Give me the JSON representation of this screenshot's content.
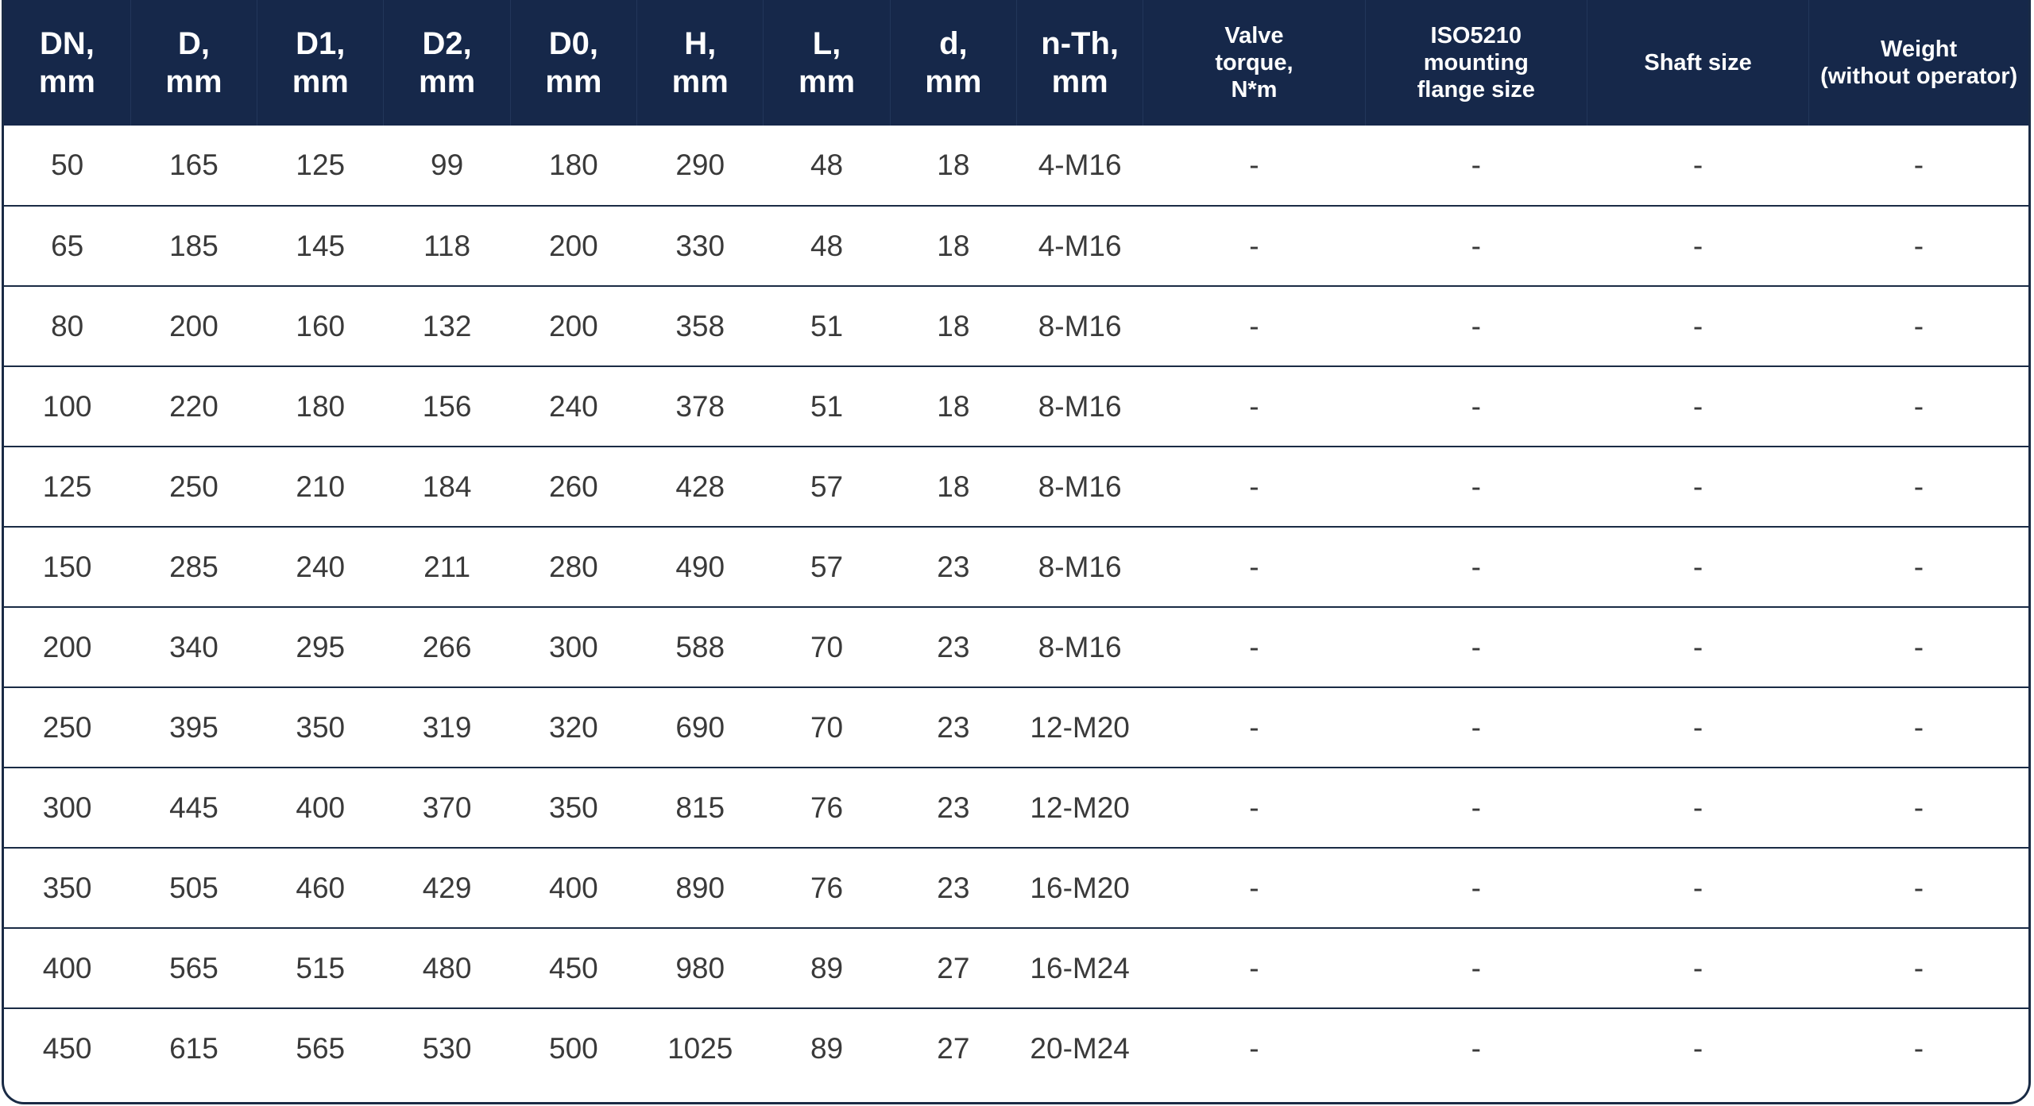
{
  "table": {
    "headers": [
      {
        "lines": [
          "DN,",
          "mm"
        ],
        "size": "big"
      },
      {
        "lines": [
          "D,",
          "mm"
        ],
        "size": "big"
      },
      {
        "lines": [
          "D1,",
          "mm"
        ],
        "size": "big"
      },
      {
        "lines": [
          "D2,",
          "mm"
        ],
        "size": "big"
      },
      {
        "lines": [
          "D0,",
          "mm"
        ],
        "size": "big"
      },
      {
        "lines": [
          "H,",
          "mm"
        ],
        "size": "big"
      },
      {
        "lines": [
          "L,",
          "mm"
        ],
        "size": "big"
      },
      {
        "lines": [
          "d,",
          "mm"
        ],
        "size": "big"
      },
      {
        "lines": [
          "n-Th,",
          "mm"
        ],
        "size": "big"
      },
      {
        "lines": [
          "Valve",
          "torque,",
          "N*m"
        ],
        "size": "small"
      },
      {
        "lines": [
          "ISO5210",
          "mounting",
          "flange size"
        ],
        "size": "small"
      },
      {
        "lines": [
          "Shaft size"
        ],
        "size": "small"
      },
      {
        "lines": [
          "Weight",
          "(without operator)"
        ],
        "size": "small"
      }
    ],
    "rows": [
      [
        "50",
        "165",
        "125",
        "99",
        "180",
        "290",
        "48",
        "18",
        "4-M16",
        "-",
        "-",
        "-",
        "-"
      ],
      [
        "65",
        "185",
        "145",
        "118",
        "200",
        "330",
        "48",
        "18",
        "4-M16",
        "-",
        "-",
        "-",
        "-"
      ],
      [
        "80",
        "200",
        "160",
        "132",
        "200",
        "358",
        "51",
        "18",
        "8-M16",
        "-",
        "-",
        "-",
        "-"
      ],
      [
        "100",
        "220",
        "180",
        "156",
        "240",
        "378",
        "51",
        "18",
        "8-M16",
        "-",
        "-",
        "-",
        "-"
      ],
      [
        "125",
        "250",
        "210",
        "184",
        "260",
        "428",
        "57",
        "18",
        "8-M16",
        "-",
        "-",
        "-",
        "-"
      ],
      [
        "150",
        "285",
        "240",
        "211",
        "280",
        "490",
        "57",
        "23",
        "8-M16",
        "-",
        "-",
        "-",
        "-"
      ],
      [
        "200",
        "340",
        "295",
        "266",
        "300",
        "588",
        "70",
        "23",
        "8-M16",
        "-",
        "-",
        "-",
        "-"
      ],
      [
        "250",
        "395",
        "350",
        "319",
        "320",
        "690",
        "70",
        "23",
        "12-M20",
        "-",
        "-",
        "-",
        "-"
      ],
      [
        "300",
        "445",
        "400",
        "370",
        "350",
        "815",
        "76",
        "23",
        "12-M20",
        "-",
        "-",
        "-",
        "-"
      ],
      [
        "350",
        "505",
        "460",
        "429",
        "400",
        "890",
        "76",
        "23",
        "16-M20",
        "-",
        "-",
        "-",
        "-"
      ],
      [
        "400",
        "565",
        "515",
        "480",
        "450",
        "980",
        "89",
        "27",
        "16-M24",
        "-",
        "-",
        "-",
        "-"
      ],
      [
        "450",
        "615",
        "565",
        "530",
        "500",
        "1025",
        "89",
        "27",
        "20-M24",
        "-",
        "-",
        "-",
        "-"
      ]
    ]
  },
  "colors": {
    "header_bg": "#16284a",
    "header_text": "#ffffff",
    "row_border": "#1a2b45",
    "cell_text": "#3a3a3a"
  }
}
